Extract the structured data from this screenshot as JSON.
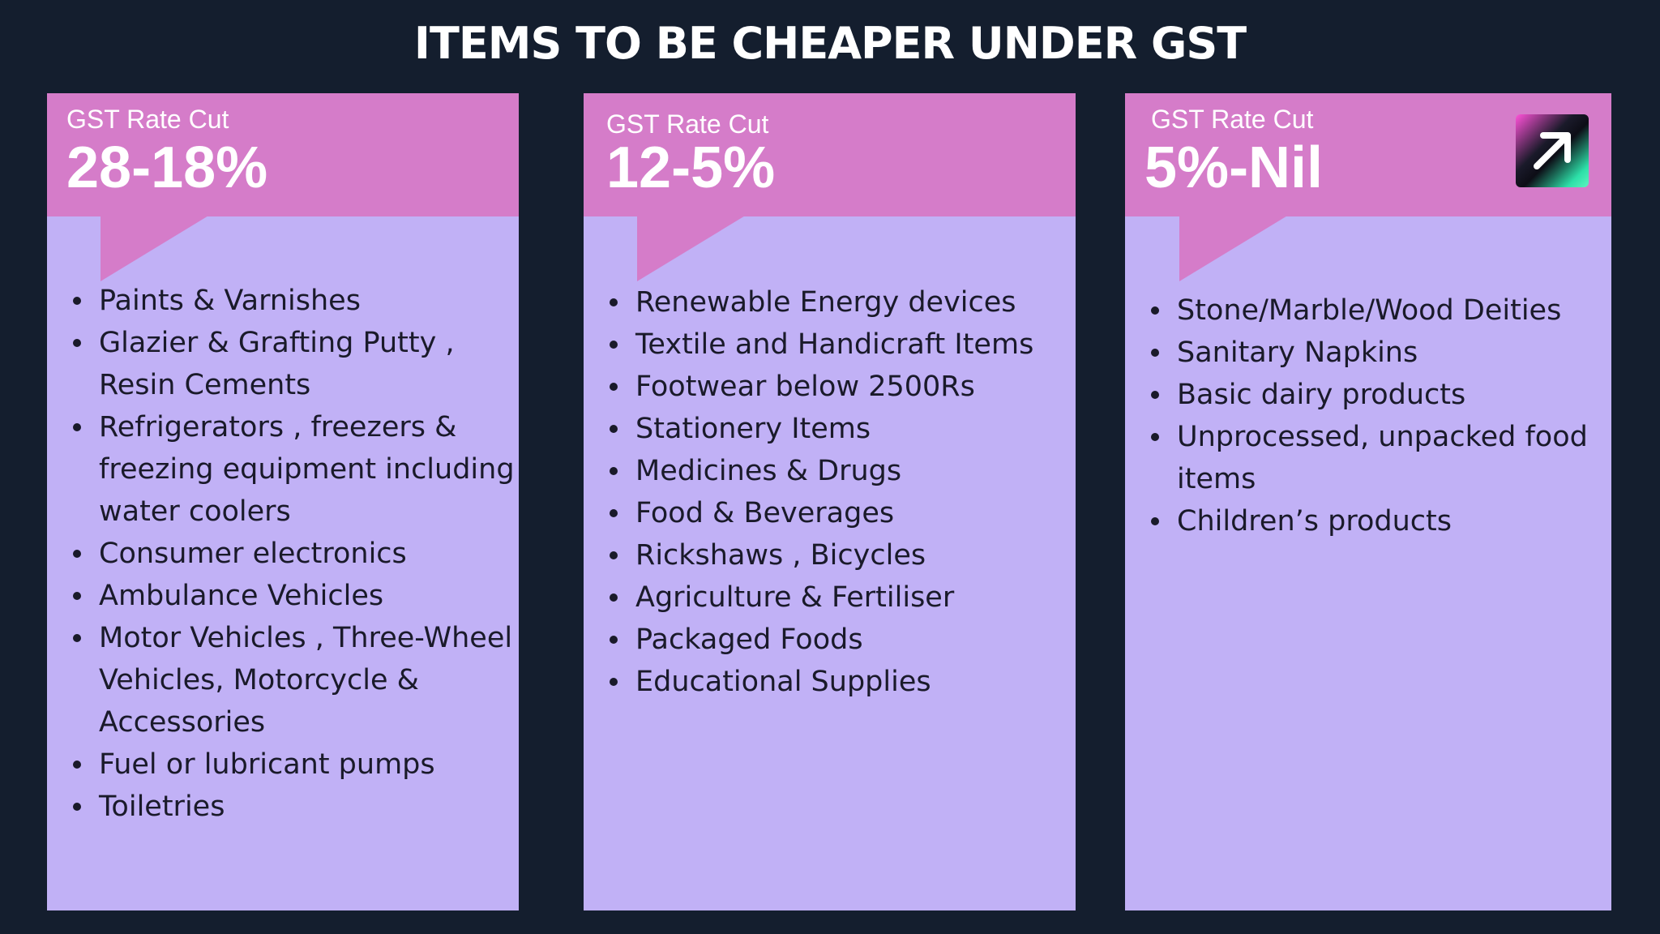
{
  "title": "ITEMS TO BE CHEAPER UNDER GST",
  "colors": {
    "background": "#141e2e",
    "header": "#d57cc9",
    "card_body": "#c1b1f6",
    "text_dark": "#1a1a2a",
    "text_light": "#ffffff"
  },
  "cards": [
    {
      "label": "GST Rate Cut",
      "rate": "28-18%",
      "items": [
        "Paints & Varnishes",
        "Glazier & Grafting Putty , Resin Cements",
        "Refrigerators , freezers & freezing equipment including water coolers",
        "Consumer electronics",
        "Ambulance Vehicles",
        "Motor Vehicles , Three-Wheel Vehicles, Motorcycle & Accessories",
        "Fuel or lubricant pumps",
        "Toiletries"
      ]
    },
    {
      "label": "GST Rate Cut",
      "rate": "12-5%",
      "items": [
        "Renewable Energy devices",
        "Textile and Handicraft Items",
        "Footwear below 2500Rs",
        "Stationery Items",
        "Medicines & Drugs",
        "Food & Beverages",
        "Rickshaws , Bicycles",
        "Agriculture & Fertiliser",
        "Packaged Foods",
        "Educational Supplies"
      ]
    },
    {
      "label": "GST Rate Cut",
      "rate": "5%-Nil",
      "icon": "arrow-up-right-icon",
      "items": [
        "Stone/Marble/Wood Deities",
        "Sanitary Napkins",
        "Basic dairy products",
        "Unprocessed, unpacked food items",
        "Children’s products"
      ]
    }
  ]
}
